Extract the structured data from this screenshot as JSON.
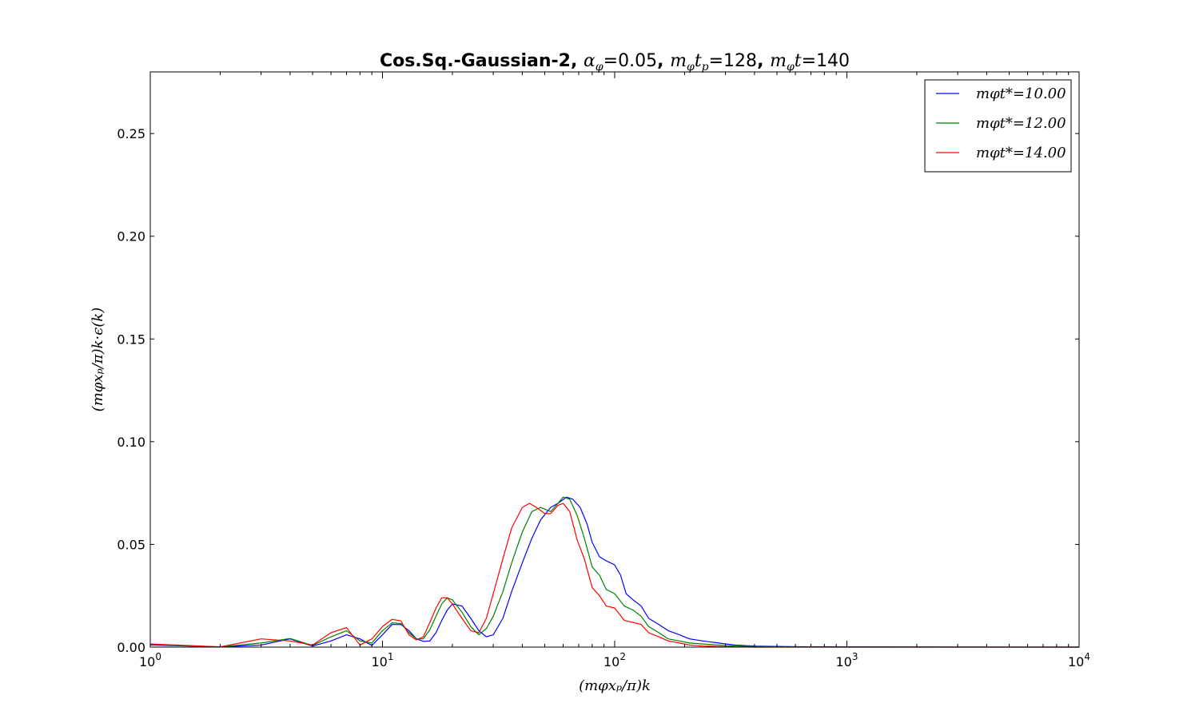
{
  "chart_data": {
    "type": "line",
    "title": {
      "prefix": "Cos.Sq.-Gaussian-2, ",
      "param1": "α",
      "param1_sub": "φ",
      "param1_val": "=0.05",
      "sep1": ", ",
      "param2": "m",
      "param2_sub": "φ",
      "param2_t": "t",
      "param2_tsub": "p",
      "param2_val": "=128",
      "sep2": ", ",
      "param3": "m",
      "param3_sub": "φ",
      "param3_t": "t",
      "param3_val": "=140"
    },
    "xlabel": "(mφxₚ/π)k",
    "ylabel": "(mφxₚ/π)k·ϵ(k)",
    "xscale": "log",
    "xlim": [
      1,
      10000
    ],
    "ylim": [
      0,
      0.28
    ],
    "xticks": [
      {
        "value": 1,
        "base": "10",
        "exp": "0"
      },
      {
        "value": 10,
        "base": "10",
        "exp": "1"
      },
      {
        "value": 100,
        "base": "10",
        "exp": "2"
      },
      {
        "value": 1000,
        "base": "10",
        "exp": "3"
      },
      {
        "value": 10000,
        "base": "10",
        "exp": "4"
      }
    ],
    "yticks": [
      {
        "value": 0.0,
        "label": "0.00"
      },
      {
        "value": 0.05,
        "label": "0.05"
      },
      {
        "value": 0.1,
        "label": "0.10"
      },
      {
        "value": 0.15,
        "label": "0.15"
      },
      {
        "value": 0.2,
        "label": "0.20"
      },
      {
        "value": 0.25,
        "label": "0.25"
      }
    ],
    "grid": false,
    "legend_position": "top-right",
    "series": [
      {
        "name": "mφt*=10.00",
        "color": "#0000ff",
        "points": [
          [
            1,
            0.001
          ],
          [
            2,
            0.0001
          ],
          [
            3,
            0.001
          ],
          [
            4,
            0.004
          ],
          [
            5,
            0.0005
          ],
          [
            6,
            0.003
          ],
          [
            7,
            0.006
          ],
          [
            8,
            0.004
          ],
          [
            9,
            0.0008
          ],
          [
            10,
            0.006
          ],
          [
            11,
            0.011
          ],
          [
            12,
            0.011
          ],
          [
            13,
            0.008
          ],
          [
            14,
            0.004
          ],
          [
            15,
            0.0028
          ],
          [
            16,
            0.003
          ],
          [
            17,
            0.007
          ],
          [
            18,
            0.013
          ],
          [
            19,
            0.018
          ],
          [
            20,
            0.021
          ],
          [
            22,
            0.02
          ],
          [
            24,
            0.014
          ],
          [
            26,
            0.008
          ],
          [
            28,
            0.005
          ],
          [
            30,
            0.006
          ],
          [
            33,
            0.014
          ],
          [
            36,
            0.027
          ],
          [
            40,
            0.041
          ],
          [
            44,
            0.053
          ],
          [
            48,
            0.062
          ],
          [
            53,
            0.068
          ],
          [
            57,
            0.07
          ],
          [
            62,
            0.073
          ],
          [
            66,
            0.072
          ],
          [
            71,
            0.068
          ],
          [
            76,
            0.06
          ],
          [
            80,
            0.051
          ],
          [
            86,
            0.044
          ],
          [
            92,
            0.042
          ],
          [
            100,
            0.04
          ],
          [
            106,
            0.035
          ],
          [
            112,
            0.026
          ],
          [
            120,
            0.023
          ],
          [
            130,
            0.02
          ],
          [
            140,
            0.014
          ],
          [
            155,
            0.011
          ],
          [
            170,
            0.008
          ],
          [
            190,
            0.006
          ],
          [
            210,
            0.004
          ],
          [
            240,
            0.003
          ],
          [
            280,
            0.002
          ],
          [
            330,
            0.001
          ],
          [
            400,
            0.0005
          ],
          [
            600,
            0.0002
          ],
          [
            1000,
            0.0001
          ],
          [
            10000,
            0.0
          ]
        ]
      },
      {
        "name": "mφt*=12.00",
        "color": "#008000",
        "points": [
          [
            1,
            0.0012
          ],
          [
            2,
            0.0001
          ],
          [
            3,
            0.002
          ],
          [
            4,
            0.0042
          ],
          [
            5,
            0.0008
          ],
          [
            6,
            0.005
          ],
          [
            7,
            0.008
          ],
          [
            8,
            0.003
          ],
          [
            9,
            0.002
          ],
          [
            10,
            0.008
          ],
          [
            11,
            0.0118
          ],
          [
            12,
            0.0115
          ],
          [
            13,
            0.007
          ],
          [
            14,
            0.004
          ],
          [
            15,
            0.004
          ],
          [
            16,
            0.0085
          ],
          [
            17,
            0.015
          ],
          [
            18,
            0.021
          ],
          [
            19,
            0.024
          ],
          [
            20,
            0.023
          ],
          [
            22,
            0.017
          ],
          [
            24,
            0.01
          ],
          [
            26,
            0.006
          ],
          [
            28,
            0.009
          ],
          [
            30,
            0.015
          ],
          [
            33,
            0.027
          ],
          [
            36,
            0.041
          ],
          [
            40,
            0.056
          ],
          [
            44,
            0.066
          ],
          [
            48,
            0.068
          ],
          [
            53,
            0.066
          ],
          [
            57,
            0.07
          ],
          [
            60,
            0.073
          ],
          [
            64,
            0.072
          ],
          [
            69,
            0.064
          ],
          [
            74,
            0.053
          ],
          [
            80,
            0.039
          ],
          [
            86,
            0.035
          ],
          [
            92,
            0.028
          ],
          [
            100,
            0.026
          ],
          [
            110,
            0.02
          ],
          [
            120,
            0.018
          ],
          [
            130,
            0.015
          ],
          [
            140,
            0.01
          ],
          [
            155,
            0.007
          ],
          [
            170,
            0.004
          ],
          [
            190,
            0.003
          ],
          [
            210,
            0.002
          ],
          [
            240,
            0.0015
          ],
          [
            280,
            0.001
          ],
          [
            330,
            0.0005
          ],
          [
            400,
            0.0003
          ],
          [
            600,
            0.0001
          ],
          [
            1000,
            0.0
          ],
          [
            10000,
            0.0
          ]
        ]
      },
      {
        "name": "mφt*=14.00",
        "color": "#ff0000",
        "points": [
          [
            1,
            0.0015
          ],
          [
            2,
            0.0001
          ],
          [
            3,
            0.004
          ],
          [
            4,
            0.003
          ],
          [
            5,
            0.001
          ],
          [
            6,
            0.007
          ],
          [
            7,
            0.0095
          ],
          [
            8,
            0.001
          ],
          [
            9,
            0.004
          ],
          [
            10,
            0.01
          ],
          [
            11,
            0.0135
          ],
          [
            12,
            0.0128
          ],
          [
            13,
            0.006
          ],
          [
            14,
            0.0035
          ],
          [
            15,
            0.005
          ],
          [
            16,
            0.012
          ],
          [
            17,
            0.019
          ],
          [
            18,
            0.024
          ],
          [
            19,
            0.024
          ],
          [
            20,
            0.021
          ],
          [
            22,
            0.014
          ],
          [
            24,
            0.008
          ],
          [
            26,
            0.007
          ],
          [
            28,
            0.014
          ],
          [
            30,
            0.026
          ],
          [
            33,
            0.043
          ],
          [
            36,
            0.058
          ],
          [
            40,
            0.068
          ],
          [
            43,
            0.07
          ],
          [
            46,
            0.068
          ],
          [
            50,
            0.065
          ],
          [
            53,
            0.065
          ],
          [
            57,
            0.069
          ],
          [
            60,
            0.07
          ],
          [
            64,
            0.066
          ],
          [
            69,
            0.052
          ],
          [
            74,
            0.043
          ],
          [
            80,
            0.029
          ],
          [
            86,
            0.025
          ],
          [
            92,
            0.02
          ],
          [
            100,
            0.019
          ],
          [
            110,
            0.013
          ],
          [
            120,
            0.012
          ],
          [
            130,
            0.011
          ],
          [
            140,
            0.007
          ],
          [
            155,
            0.005
          ],
          [
            170,
            0.003
          ],
          [
            190,
            0.002
          ],
          [
            210,
            0.001
          ],
          [
            240,
            0.0005
          ],
          [
            280,
            0.0003
          ],
          [
            330,
            0.0001
          ],
          [
            400,
            0.0
          ],
          [
            10000,
            0.0
          ]
        ]
      }
    ]
  }
}
